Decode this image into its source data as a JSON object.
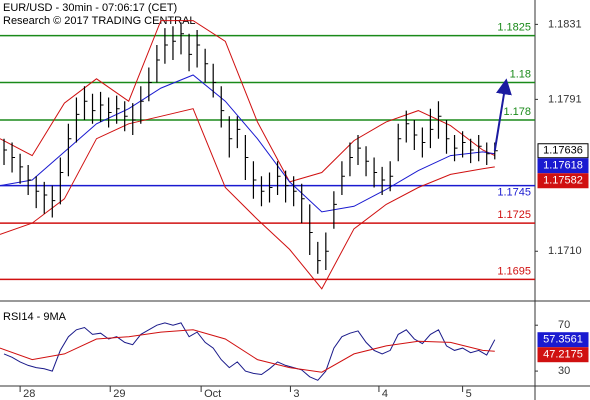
{
  "chart_data": [
    {
      "type": "ohlc",
      "title": "EUR/USD - 30min - 07:06:17 (CET)",
      "subtitle": "Research © 2017 TRADING CENTRAL",
      "xlim": [
        0,
        66.5
      ],
      "ylim": [
        1.1684,
        1.1844
      ],
      "yticks": [
        1.1831,
        1.1791,
        {
          "value": 1.171,
          "label": "1.1710"
        }
      ],
      "bar_color": "#000000",
      "x": [
        0.5,
        1.5,
        2.5,
        3.5,
        4.5,
        5.5,
        6.5,
        7.5,
        8.5,
        9.5,
        10.5,
        11.5,
        12.5,
        13.5,
        14.5,
        15.5,
        16.5,
        17.5,
        18.5,
        19.5,
        20.5,
        21.5,
        22.5,
        23.5,
        24.5,
        25.5,
        26.5,
        27.5,
        28.5,
        29.5,
        30.5,
        31.5,
        32.5,
        33.5,
        34.5,
        35.5,
        36.5,
        37.5,
        38.5,
        39.5,
        40.5,
        41.5,
        42.5,
        43.5,
        44.5,
        45.5,
        46.5,
        47.5,
        48.5,
        49.5,
        50.5,
        51.5,
        52.5,
        53.5,
        54.5,
        55.5,
        56.5,
        57.5,
        58.5,
        59.5,
        60.5,
        61.5
      ],
      "high": [
        1.177,
        1.1768,
        1.1762,
        1.1756,
        1.175,
        1.1747,
        1.1745,
        1.176,
        1.1778,
        1.1792,
        1.1798,
        1.1794,
        1.1795,
        1.1792,
        1.1793,
        1.179,
        1.1789,
        1.1798,
        1.1808,
        1.182,
        1.1829,
        1.183,
        1.1832,
        1.1826,
        1.1828,
        1.1818,
        1.181,
        1.1798,
        1.1782,
        1.1782,
        1.1772,
        1.1758,
        1.175,
        1.1752,
        1.1758,
        1.1753,
        1.175,
        1.1746,
        1.1735,
        1.1715,
        1.172,
        1.1742,
        1.1758,
        1.1768,
        1.1772,
        1.1766,
        1.176,
        1.1755,
        1.1758,
        1.1778,
        1.1785,
        1.178,
        1.1776,
        1.1786,
        1.179,
        1.178,
        1.1772,
        1.1774,
        1.177,
        1.1772,
        1.1768,
        1.1768
      ],
      "low": [
        1.1756,
        1.1752,
        1.1746,
        1.174,
        1.1733,
        1.173,
        1.1728,
        1.1735,
        1.175,
        1.1768,
        1.178,
        1.1778,
        1.1779,
        1.1776,
        1.1778,
        1.1774,
        1.1772,
        1.1778,
        1.179,
        1.18,
        1.181,
        1.1812,
        1.1815,
        1.1806,
        1.1808,
        1.18,
        1.1792,
        1.1776,
        1.176,
        1.1765,
        1.1748,
        1.1738,
        1.1734,
        1.1736,
        1.174,
        1.1736,
        1.1734,
        1.1725,
        1.1708,
        1.1698,
        1.17,
        1.1722,
        1.174,
        1.175,
        1.1756,
        1.175,
        1.1744,
        1.174,
        1.1742,
        1.1758,
        1.1768,
        1.1764,
        1.176,
        1.1765,
        1.177,
        1.1762,
        1.1758,
        1.176,
        1.1757,
        1.1758,
        1.1756,
        1.1759
      ],
      "close": [
        1.1764,
        1.176,
        1.1755,
        1.1748,
        1.1742,
        1.174,
        1.1737,
        1.1752,
        1.177,
        1.1783,
        1.179,
        1.1785,
        1.1788,
        1.1784,
        1.1786,
        1.1782,
        1.178,
        1.179,
        1.18,
        1.1812,
        1.182,
        1.1822,
        1.1826,
        1.1815,
        1.182,
        1.181,
        1.18,
        1.1785,
        1.177,
        1.1775,
        1.176,
        1.1748,
        1.1742,
        1.1744,
        1.175,
        1.1745,
        1.1742,
        1.1738,
        1.172,
        1.1705,
        1.171,
        1.1735,
        1.175,
        1.176,
        1.1765,
        1.1758,
        1.1752,
        1.1748,
        1.175,
        1.177,
        1.1778,
        1.1772,
        1.1768,
        1.1775,
        1.1782,
        1.177,
        1.1765,
        1.1768,
        1.1764,
        1.1766,
        1.1762,
        1.17636
      ],
      "band_x": [
        0,
        4,
        8,
        12,
        16,
        20,
        24,
        28,
        32,
        36,
        40,
        44,
        48,
        52,
        56,
        60,
        61.5
      ],
      "bands": [
        {
          "color": "#d01010",
          "values": [
            1.177,
            1.1761,
            1.1789,
            1.1802,
            1.179,
            1.1833,
            1.1833,
            1.1822,
            1.1779,
            1.1747,
            1.1752,
            1.1769,
            1.1779,
            1.1785,
            1.1777,
            1.1764,
            1.1761
          ]
        },
        {
          "color": "#d01010",
          "values": [
            1.1719,
            1.1725,
            1.1738,
            1.177,
            1.1778,
            1.1782,
            1.1786,
            1.1744,
            1.1727,
            1.1711,
            1.169,
            1.1722,
            1.1735,
            1.1744,
            1.1751,
            1.1754,
            1.1755
          ]
        },
        {
          "color": "#1a1ad0",
          "values": [
            1.1745,
            1.1748,
            1.1763,
            1.1778,
            1.1786,
            1.1797,
            1.1804,
            1.179,
            1.177,
            1.1747,
            1.1731,
            1.1734,
            1.1743,
            1.1753,
            1.1761,
            1.1763,
            1.1762
          ]
        }
      ],
      "levels": [
        {
          "value": 1.1825,
          "color": "#1a8a1a"
        },
        {
          "value": 1.18,
          "color": "#1a8a1a"
        },
        {
          "value": 1.178,
          "color": "#1a8a1a"
        },
        {
          "value": 1.1745,
          "color": "#1a1ad0"
        },
        {
          "value": 1.1725,
          "color": "#d01010"
        },
        {
          "value": 1.1695,
          "color": "#d01010"
        }
      ],
      "forecast": {
        "x": [
          61.5,
          62.8
        ],
        "values": [
          1.17636,
          1.1798
        ],
        "color": "#1a1aa0"
      },
      "price_tags": [
        {
          "value": 1.17636,
          "color": "#ffffff"
        },
        {
          "value": 1.17618,
          "color": "#1a1ad0"
        },
        {
          "value": 1.17582,
          "color": "#d01010"
        }
      ]
    },
    {
      "type": "line",
      "title": "RSI14 - 9MA",
      "xlim": [
        0,
        66.5
      ],
      "ylim": [
        17,
        85
      ],
      "yticks": [
        70,
        30
      ],
      "xticks": [
        {
          "value": 2.5,
          "label": "28"
        },
        {
          "value": 13.7,
          "label": "29"
        },
        {
          "value": 25,
          "label": "Oct"
        },
        {
          "value": 36.1,
          "label": "3"
        },
        {
          "value": 47.1,
          "label": "4"
        },
        {
          "value": 57.5,
          "label": "5"
        }
      ],
      "lines": [
        {
          "color": "#1a1a8a",
          "x_path": "chart_data.0.x",
          "values": [
            45,
            42,
            38,
            35,
            33,
            32,
            30,
            48,
            60,
            66,
            68,
            62,
            63,
            58,
            60,
            55,
            53,
            62,
            66,
            70,
            72,
            70,
            72,
            60,
            64,
            55,
            50,
            40,
            33,
            38,
            30,
            28,
            27,
            32,
            38,
            35,
            33,
            31,
            25,
            22,
            30,
            50,
            60,
            63,
            65,
            55,
            48,
            45,
            48,
            62,
            66,
            58,
            54,
            62,
            66,
            52,
            48,
            50,
            46,
            48,
            44,
            57.3561
          ]
        },
        {
          "color": "#d01010",
          "x_path": "chart_data.0.band_x",
          "values": [
            50,
            40,
            45,
            58,
            60,
            64,
            66,
            58,
            40,
            33,
            29,
            45,
            52,
            56,
            55,
            48,
            47.2175
          ]
        }
      ],
      "tags": [
        {
          "value": 57.3561,
          "color": "#1a1ad0"
        },
        {
          "value": 47.2175,
          "color": "#d01010"
        }
      ]
    }
  ]
}
